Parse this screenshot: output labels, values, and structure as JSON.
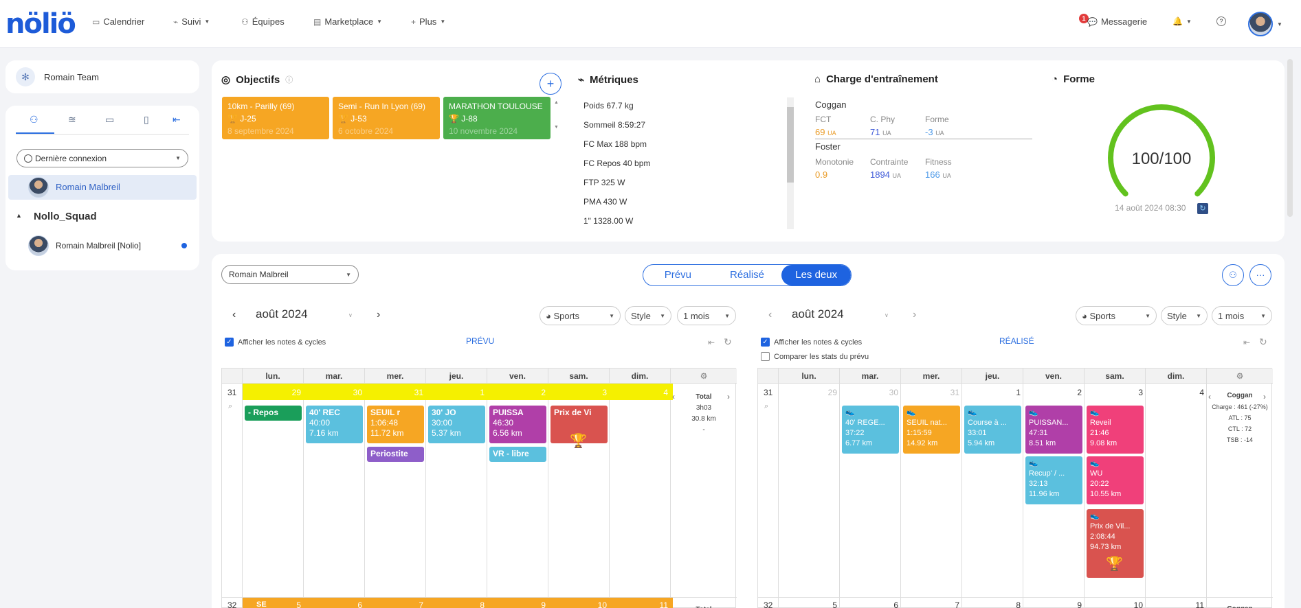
{
  "app": {
    "logo": "nöliö"
  },
  "nav": {
    "calendar": "Calendrier",
    "suivi": "Suivi",
    "equipes": "Équipes",
    "marketplace": "Marketplace",
    "plus": "Plus",
    "messagerie": "Messagerie",
    "badge": "1"
  },
  "sidebar": {
    "team": "Romain Team",
    "filter": "Dernière connexion",
    "selected_user": "Romain Malbreil",
    "squad": "Nollo_Squad",
    "squad_member": "Romain Malbreil [Nolio]"
  },
  "objectifs": {
    "title": "Objectifs",
    "items": [
      {
        "name": "10km - Parilly (69)",
        "countdown": "J-25",
        "date": "8 septembre 2024",
        "color": "#f6a623"
      },
      {
        "name": "Semi - Run In Lyon (69)",
        "countdown": "J-53",
        "date": "6 octobre 2024",
        "color": "#f6a623"
      },
      {
        "name": "MARATHON TOULOUSE",
        "countdown": "J-88",
        "date": "10 novembre 2024",
        "color": "#4cae4c"
      }
    ]
  },
  "metriques": {
    "title": "Métriques",
    "items": [
      "Poids 67.7 kg",
      "Sommeil 8:59:27",
      "FC Max 188 bpm",
      "FC Repos 40 bpm",
      "FTP 325 W",
      "PMA 430 W",
      "1\" 1328.00 W"
    ]
  },
  "charge": {
    "title": "Charge d'entraînement",
    "coggan": "Coggan",
    "fct_lbl": "FCT",
    "fct": "69",
    "cphy_lbl": "C. Phy",
    "cphy": "71",
    "forme_lbl": "Forme",
    "forme": "-3",
    "unit": "UA",
    "foster": "Foster",
    "mono_lbl": "Monotonie",
    "mono": "0.9",
    "contr_lbl": "Contrainte",
    "contr": "1894",
    "fit_lbl": "Fitness",
    "fit": "166"
  },
  "forme": {
    "title": "Forme",
    "score": "100/100",
    "score_value": 100,
    "date": "14 août 2024 08:30"
  },
  "planner": {
    "athlete": "Romain Malbreil",
    "modes": [
      "Prévu",
      "Réalisé",
      "Les deux"
    ],
    "active_mode": "Les deux"
  },
  "left_cal": {
    "month": "août 2024",
    "sports": "Sports",
    "style": "Style",
    "range": "1 mois",
    "notes": "Afficher les notes & cycles",
    "label": "PRÉVU",
    "days": [
      "lun.",
      "mar.",
      "mer.",
      "jeu.",
      "ven.",
      "sam.",
      "dim."
    ],
    "week": "31",
    "dates": [
      "29",
      "30",
      "31",
      "1",
      "2",
      "3",
      "4"
    ],
    "next_week": "32",
    "next_dates": [
      "5",
      "6",
      "7",
      "8",
      "9",
      "10",
      "11"
    ],
    "total": "Total",
    "total_time": "3h03",
    "total_dist": "30.8 km",
    "total_dash": "-",
    "events": [
      {
        "t": "- Repos",
        "color": "#1a9e5a"
      },
      {
        "t": "40' REC",
        "l1": "40:00",
        "l2": "7.16 km",
        "color": "#5bc0de"
      },
      {
        "t": "SEUIL r",
        "l1": "1:06:48",
        "l2": "11.72 km",
        "color": "#f6a623"
      },
      {
        "t": "Periostite",
        "color": "#8e5ec9"
      },
      {
        "t": "30' JO",
        "l1": "30:00",
        "l2": "5.37 km",
        "color": "#5bc0de"
      },
      {
        "t": "PUISSA",
        "l1": "46:30",
        "l2": "6.56 km",
        "color": "#b03fa8"
      },
      {
        "t": "VR - libre",
        "color": "#5bc0de"
      },
      {
        "t": "Prix de Vi",
        "color": "#d9534f"
      }
    ],
    "next_event": "SE"
  },
  "right_cal": {
    "month": "août 2024",
    "sports": "Sports",
    "style": "Style",
    "range": "1 mois",
    "notes": "Afficher les notes & cycles",
    "compare": "Comparer les stats du prévu",
    "label": "RÉALISÉ",
    "days": [
      "lun.",
      "mar.",
      "mer.",
      "jeu.",
      "ven.",
      "sam.",
      "dim."
    ],
    "week": "31",
    "dates": [
      "29",
      "30",
      "31",
      "1",
      "2",
      "3",
      "4"
    ],
    "next_week": "32",
    "next_dates": [
      "5",
      "6",
      "7",
      "8",
      "9",
      "10",
      "11"
    ],
    "stats_title": "Coggan",
    "stats": [
      "Charge : 461 (-27%)",
      "ATL : 75",
      "CTL : 72",
      "TSB : -14"
    ],
    "stats_title2": "Coggan",
    "events": [
      {
        "t": "40' REGE...",
        "l1": "37:22",
        "l2": "6.77 km",
        "color": "#5bc0de"
      },
      {
        "t": "SEUIL nat...",
        "l1": "1:15:59",
        "l2": "14.92 km",
        "color": "#f6a623"
      },
      {
        "t": "Course à ...",
        "l1": "33:01",
        "l2": "5.94 km",
        "color": "#5bc0de"
      },
      {
        "t": "PUISSAN...",
        "l1": "47:31",
        "l2": "8.51 km",
        "color": "#b03fa8"
      },
      {
        "t": "Recup' / ...",
        "l1": "32:13",
        "l2": "11.96 km",
        "color": "#5bc0de"
      },
      {
        "t": "Reveil",
        "l1": "21:46",
        "l2": "9.08 km",
        "color": "#f0407a"
      },
      {
        "t": "WU",
        "l1": "20:22",
        "l2": "10.55 km",
        "color": "#f0407a"
      },
      {
        "t": "Prix de Vil...",
        "l1": "2:08:44",
        "l2": "94.73 km",
        "color": "#d9534f"
      }
    ]
  }
}
